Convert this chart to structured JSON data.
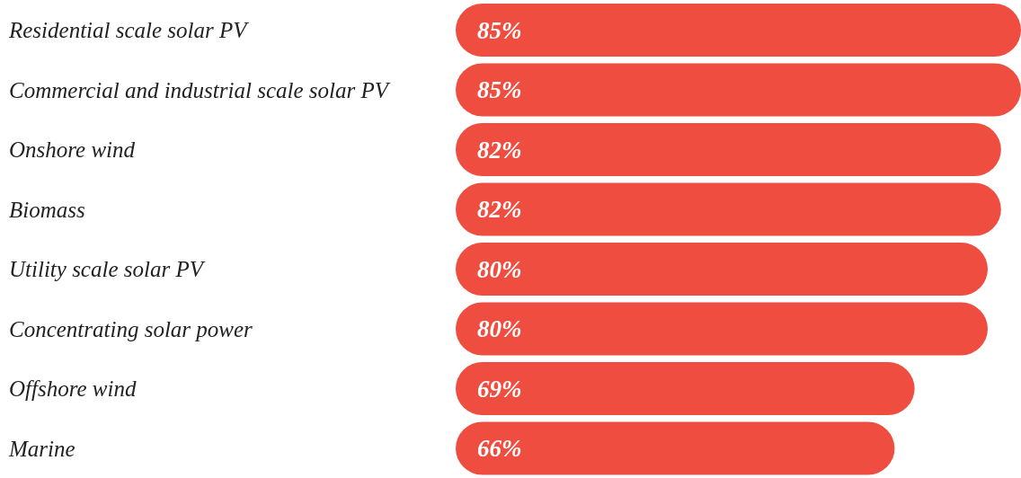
{
  "chart_data": {
    "type": "bar",
    "orientation": "horizontal",
    "categories": [
      "Residential scale solar PV",
      "Commercial and industrial scale solar PV",
      "Onshore wind",
      "Biomass",
      "Utility scale solar PV",
      "Concentrating solar power",
      "Offshore wind",
      "Marine"
    ],
    "values": [
      85,
      85,
      82,
      82,
      80,
      80,
      69,
      66
    ],
    "value_labels": [
      "85%",
      "85%",
      "82%",
      "82%",
      "80%",
      "80%",
      "69%",
      "66%"
    ],
    "color": "#ef4d3f",
    "xlim": [
      0,
      85
    ],
    "tick_labels": "y"
  }
}
